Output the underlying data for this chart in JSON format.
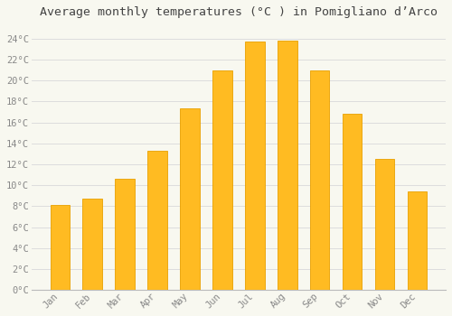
{
  "months": [
    "Jan",
    "Feb",
    "Mar",
    "Apr",
    "May",
    "Jun",
    "Jul",
    "Aug",
    "Sep",
    "Oct",
    "Nov",
    "Dec"
  ],
  "values": [
    8.1,
    8.7,
    10.6,
    13.3,
    17.3,
    21.0,
    23.7,
    23.8,
    21.0,
    16.8,
    12.5,
    9.4
  ],
  "bar_color": "#FFBB22",
  "bar_edge_color": "#E8A000",
  "background_color": "#F8F8F0",
  "grid_color": "#DDDDDD",
  "title": "Average monthly temperatures (°C ) in Pomigliano d’Arco",
  "title_fontsize": 9.5,
  "tick_label_color": "#888888",
  "ylim": [
    0,
    25.5
  ],
  "yticks": [
    0,
    2,
    4,
    6,
    8,
    10,
    12,
    14,
    16,
    18,
    20,
    22,
    24
  ],
  "font_family": "monospace",
  "bar_width": 0.6
}
